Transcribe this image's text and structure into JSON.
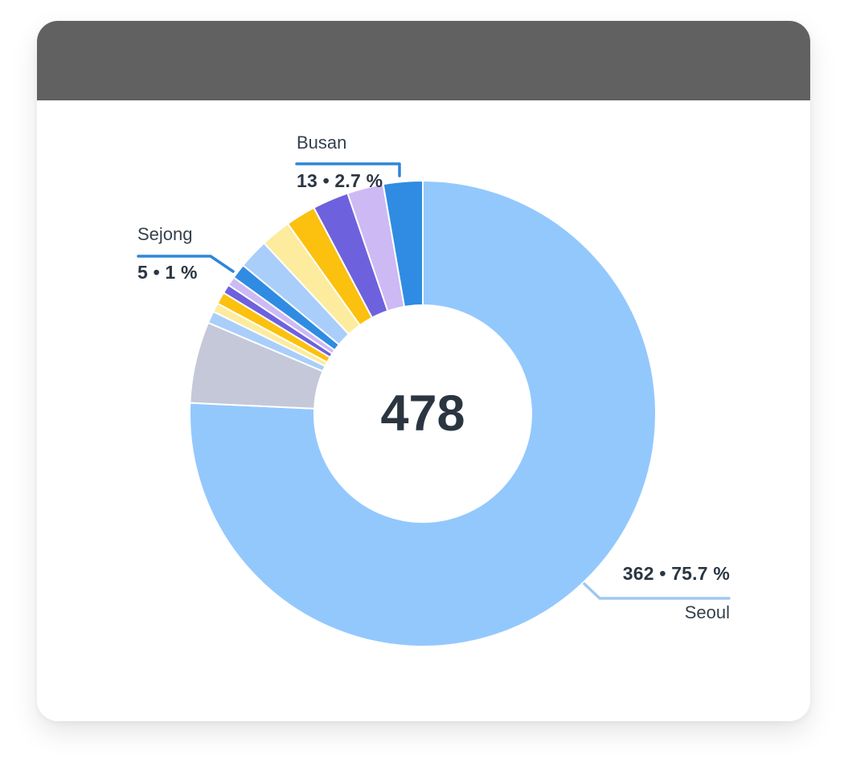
{
  "header": {
    "type": "window-title-bar"
  },
  "colors": {
    "header_bar": "#616161",
    "card_bg": "#ffffff",
    "callout_line_primary": "#2e86d8",
    "callout_line_seoul": "#9fc8f1",
    "center_text": "#2a3540",
    "value_text": "#2b3642",
    "name_text": "#34414e",
    "slice_separator": "#ffffff"
  },
  "chart_data": {
    "type": "pie",
    "subtype": "donut",
    "title": "",
    "center_total": "478",
    "total": 478,
    "rotation": "clockwise-from-top",
    "legend_position": "none",
    "unlabeled_values_estimated": true,
    "slices": [
      {
        "name": "Seoul",
        "value": 362,
        "percent_label": "75.7 %",
        "callout": "362 • 75.7 %",
        "color": "#93c8fd"
      },
      {
        "name": "",
        "value": 27,
        "color": "#c5c8d9"
      },
      {
        "name": "",
        "value": 4,
        "color": "#a9cef9"
      },
      {
        "name": "",
        "value": 3,
        "color": "#fdeb9e"
      },
      {
        "name": "",
        "value": 4,
        "color": "#fcc00e"
      },
      {
        "name": "",
        "value": 3,
        "color": "#6e61dd"
      },
      {
        "name": "",
        "value": 3,
        "color": "#cdb9f4"
      },
      {
        "name": "Sejong",
        "value": 5,
        "percent_label": "1 %",
        "callout": "5 • 1 %",
        "color": "#2f8ce2"
      },
      {
        "name": "",
        "value": 10,
        "color": "#a9cef9"
      },
      {
        "name": "",
        "value": 10,
        "color": "#fdeb9e"
      },
      {
        "name": "",
        "value": 10,
        "color": "#fcc00e"
      },
      {
        "name": "",
        "value": 12,
        "color": "#6e61dd"
      },
      {
        "name": "",
        "value": 12,
        "color": "#cdb9f4"
      },
      {
        "name": "Busan",
        "value": 13,
        "percent_label": "2.7 %",
        "callout": "13 • 2.7 %",
        "color": "#2f8ce2"
      }
    ]
  },
  "callouts": {
    "busan": {
      "name": "Busan",
      "value_label": "13 • 2.7 %"
    },
    "sejong": {
      "name": "Sejong",
      "value_label": "5 • 1 %"
    },
    "seoul": {
      "name": "Seoul",
      "value_label": "362 • 75.7 %"
    }
  }
}
